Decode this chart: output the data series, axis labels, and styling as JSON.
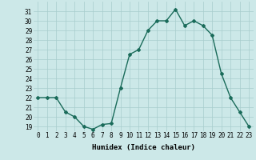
{
  "x": [
    0,
    1,
    2,
    3,
    4,
    5,
    6,
    7,
    8,
    9,
    10,
    11,
    12,
    13,
    14,
    15,
    16,
    17,
    18,
    19,
    20,
    21,
    22,
    23
  ],
  "y": [
    22,
    22,
    22,
    20.5,
    20,
    19,
    18.7,
    19.2,
    19.3,
    23,
    26.5,
    27,
    29,
    30,
    30,
    31.2,
    29.5,
    30,
    29.5,
    28.5,
    24.5,
    22,
    20.5,
    19
  ],
  "line_color": "#1a6b5a",
  "marker": "D",
  "marker_size": 2.0,
  "bg_color": "#cce8e8",
  "grid_color": "#a8cccc",
  "xlabel": "Humidex (Indice chaleur)",
  "xlim": [
    -0.5,
    23.5
  ],
  "ylim": [
    18.5,
    32
  ],
  "yticks": [
    19,
    20,
    21,
    22,
    23,
    24,
    25,
    26,
    27,
    28,
    29,
    30,
    31
  ],
  "xticks": [
    0,
    1,
    2,
    3,
    4,
    5,
    6,
    7,
    8,
    9,
    10,
    11,
    12,
    13,
    14,
    15,
    16,
    17,
    18,
    19,
    20,
    21,
    22,
    23
  ],
  "xlabel_fontsize": 6.5,
  "tick_fontsize": 5.5,
  "linewidth": 1.0
}
